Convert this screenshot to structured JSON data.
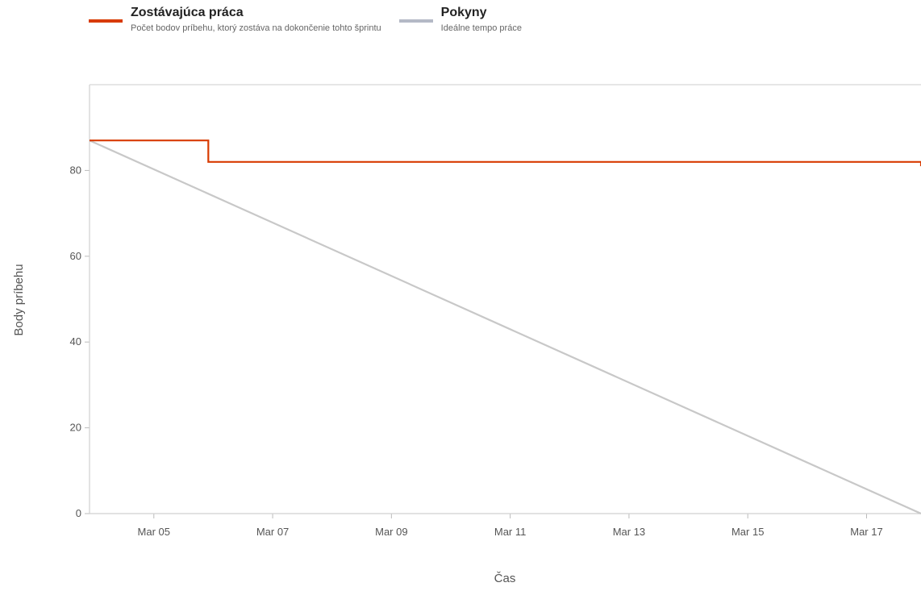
{
  "legend": {
    "remaining": {
      "title": "Zostávajúca práca",
      "description": "Počet bodov príbehu, ktorý zostáva na dokončenie tohto šprintu",
      "color": "#D83B01"
    },
    "guideline": {
      "title": "Pokyny",
      "description": "Ideálne tempo práce",
      "color": "#B4B9C6"
    }
  },
  "chart_data": {
    "type": "line",
    "xlabel": "Čas",
    "ylabel": "Body príbehu",
    "ylim": [
      0,
      100
    ],
    "xlim": [
      "2024-03-03T22:00",
      "2024-03-17T22:00"
    ],
    "yticks": [
      "0",
      "20",
      "40",
      "60",
      "80"
    ],
    "xticks": [
      "Mar 05",
      "Mar 07",
      "Mar 09",
      "Mar 11",
      "Mar 13",
      "Mar 15",
      "Mar 17"
    ],
    "grid": false,
    "legend_position": "top-left",
    "series": [
      {
        "name": "Zostávajúca práca",
        "color": "#D83B01",
        "step": true,
        "points": [
          {
            "x": "2024-03-03T22:00",
            "y": 87
          },
          {
            "x": "2024-03-05T22:00",
            "y": 87
          },
          {
            "x": "2024-03-05T22:00",
            "y": 82
          },
          {
            "x": "2024-03-17T22:00",
            "y": 82
          },
          {
            "x": "2024-03-17T22:00",
            "y": 81
          }
        ]
      },
      {
        "name": "Pokyny",
        "color": "#C8C8C8",
        "step": false,
        "points": [
          {
            "x": "2024-03-03T22:00",
            "y": 87
          },
          {
            "x": "2024-03-17T22:00",
            "y": 0
          }
        ]
      }
    ]
  }
}
